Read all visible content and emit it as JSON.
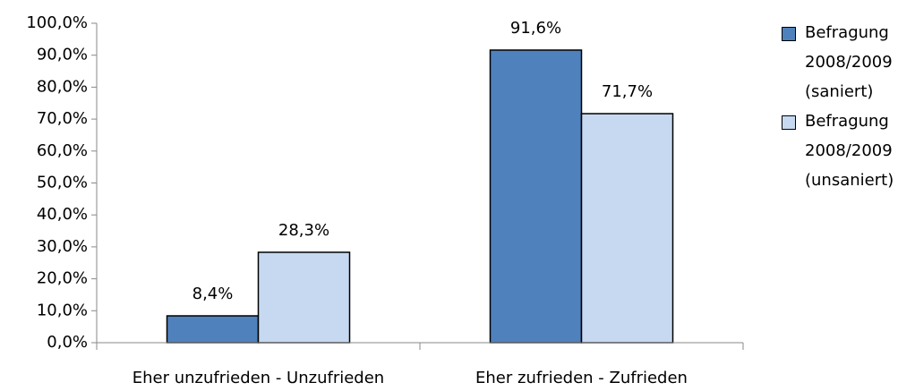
{
  "chart_data": {
    "type": "bar",
    "categories": [
      "Eher unzufrieden - Unzufrieden",
      "Eher zufrieden - Zufrieden"
    ],
    "series": [
      {
        "name": "Befragung 2008/2009 (saniert)",
        "color": "#4f81bd",
        "values": [
          8.4,
          91.6
        ],
        "value_labels": [
          "8,4%",
          "91,6%"
        ]
      },
      {
        "name": "Befragung 2008/2009 (unsaniert)",
        "color": "#c6d9f0",
        "values": [
          28.3,
          71.7
        ],
        "value_labels": [
          "28,3%",
          "71,7%"
        ]
      }
    ],
    "ylim": [
      0,
      100
    ],
    "yticks": [
      {
        "value": 0,
        "label": "0,0%"
      },
      {
        "value": 10,
        "label": "10,0%"
      },
      {
        "value": 20,
        "label": "20,0%"
      },
      {
        "value": 30,
        "label": "30,0%"
      },
      {
        "value": 40,
        "label": "40,0%"
      },
      {
        "value": 50,
        "label": "50,0%"
      },
      {
        "value": 60,
        "label": "60,0%"
      },
      {
        "value": 70,
        "label": "70,0%"
      },
      {
        "value": 80,
        "label": "80,0%"
      },
      {
        "value": 90,
        "label": "90,0%"
      },
      {
        "value": 100,
        "label": "100,0%"
      }
    ],
    "grid": false,
    "legend": "right"
  }
}
